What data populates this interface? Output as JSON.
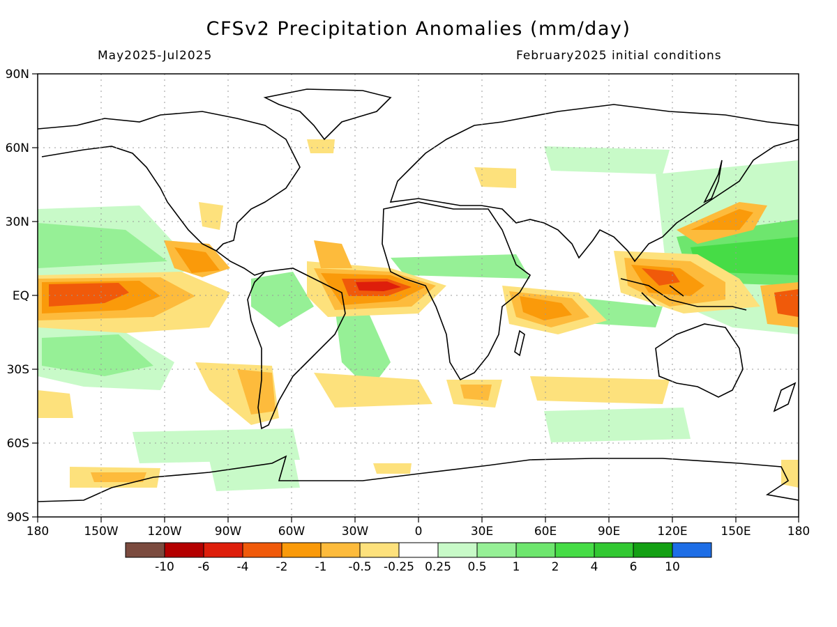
{
  "title": "CFSv2 Precipitation Anomalies (mm/day)",
  "period": "May2025-Jul2025",
  "initial_conditions": "February2025 initial conditions",
  "y_ticks": [
    "90N",
    "60N",
    "30N",
    "EQ",
    "30S",
    "60S",
    "90S"
  ],
  "x_ticks": [
    "180",
    "150W",
    "120W",
    "90W",
    "60W",
    "30W",
    "0",
    "30E",
    "60E",
    "90E",
    "120E",
    "150E",
    "180"
  ],
  "colorbar": {
    "colors": [
      "#7b4b3f",
      "#b40000",
      "#de1e0b",
      "#f05a0a",
      "#fa9a0a",
      "#fdbb3c",
      "#fde17c",
      "#ffffff",
      "#c8fac8",
      "#96f096",
      "#6ee66e",
      "#46dc46",
      "#32c832",
      "#14a014",
      "#1e6ee6"
    ],
    "labels": [
      "-10",
      "-6",
      "-4",
      "-2",
      "-1",
      "-0.5",
      "-0.25",
      "0.25",
      "0.5",
      "1",
      "2",
      "4",
      "6",
      "10"
    ]
  },
  "legend": {
    "dry_1": "#fde17c",
    "dry_2": "#fdbb3c",
    "dry_3": "#fa9a0a",
    "dry_4": "#f05a0a",
    "dry_5": "#de1e0b",
    "wet_1": "#c8fac8",
    "wet_2": "#96f096",
    "wet_3": "#6ee66e",
    "wet_4": "#46dc46"
  }
}
